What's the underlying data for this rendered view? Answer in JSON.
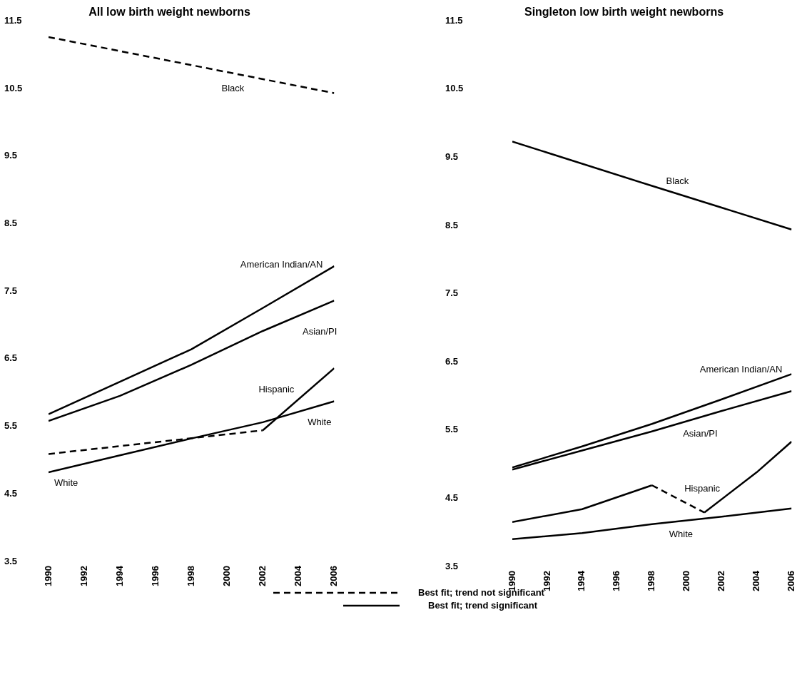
{
  "chart_data": [
    {
      "type": "line",
      "title": "All low birth weight newborns",
      "xlim": [
        1990,
        2006
      ],
      "xticks": [
        1990,
        1992,
        1994,
        1996,
        1998,
        2000,
        2002,
        2004,
        2006
      ],
      "ylim": [
        3.5,
        11.5
      ],
      "yticks": [
        3.5,
        4.5,
        5.5,
        6.5,
        7.5,
        8.5,
        9.5,
        10.5,
        11.5
      ],
      "marker": "none",
      "series": [
        {
          "name": "Black",
          "color": "#000000",
          "line_style": "dashed",
          "x": [
            1990,
            2006
          ],
          "values": [
            11.26,
            10.43
          ]
        },
        {
          "name": "American Indian/AN",
          "color": "#000000",
          "line_style": "solid",
          "x": [
            1990,
            1994,
            1998,
            2002,
            2006
          ],
          "values": [
            5.68,
            6.16,
            6.64,
            7.25,
            7.87
          ]
        },
        {
          "name": "Asian/PI",
          "color": "#000000",
          "line_style": "solid",
          "x": [
            1990,
            1994,
            1998,
            2002,
            2006
          ],
          "values": [
            5.58,
            5.95,
            6.41,
            6.91,
            7.36
          ]
        },
        {
          "name": "White",
          "color": "#000000",
          "line_style": "solid",
          "x": [
            1990,
            1994,
            1998,
            2002,
            2006
          ],
          "values": [
            4.82,
            5.07,
            5.32,
            5.56,
            5.87
          ]
        },
        {
          "color": "#000000",
          "line_style": "dashed",
          "x": [
            1990,
            2002
          ],
          "values": [
            5.09,
            5.44
          ]
        },
        {
          "name": "Hispanic",
          "color": "#000000",
          "line_style": "solid",
          "x": [
            2002,
            2006
          ],
          "values": [
            5.44,
            6.36
          ]
        }
      ]
    },
    {
      "type": "line",
      "title": "Singleton low birth weight newborns",
      "xlim": [
        1990,
        2006
      ],
      "xticks": [
        1990,
        1992,
        1994,
        1996,
        1998,
        2000,
        2002,
        2004,
        2006
      ],
      "ylim": [
        3.5,
        11.5
      ],
      "yticks": [
        3.5,
        4.5,
        5.5,
        6.5,
        7.5,
        8.5,
        9.5,
        10.5,
        11.5
      ],
      "marker": "none",
      "series": [
        {
          "name": "Black",
          "color": "#000000",
          "line_style": "solid",
          "x": [
            1990,
            1998,
            2006
          ],
          "values": [
            9.73,
            9.08,
            8.44
          ]
        },
        {
          "name": "American Indian/AN",
          "color": "#000000",
          "line_style": "solid",
          "x": [
            1990,
            1994,
            1998,
            2002,
            2006
          ],
          "values": [
            4.95,
            5.26,
            5.59,
            5.95,
            6.32
          ]
        },
        {
          "name": "Asian/PI",
          "color": "#000000",
          "line_style": "solid",
          "x": [
            1990,
            1994,
            1998,
            2002,
            2006
          ],
          "values": [
            4.92,
            5.2,
            5.48,
            5.78,
            6.07
          ]
        },
        {
          "color": "#000000",
          "line_style": "solid",
          "x": [
            1990,
            1994,
            1998
          ],
          "values": [
            4.15,
            4.34,
            4.69
          ]
        },
        {
          "name": "Hispanic",
          "color": "#000000",
          "line_style": "dashed",
          "x": [
            1998,
            2001
          ],
          "values": [
            4.69,
            4.29
          ]
        },
        {
          "color": "#000000",
          "line_style": "solid",
          "x": [
            2001,
            2004,
            2006
          ],
          "values": [
            4.29,
            4.88,
            5.33
          ]
        },
        {
          "name": "White",
          "color": "#000000",
          "line_style": "solid",
          "x": [
            1990,
            1994,
            1998,
            2002,
            2006
          ],
          "values": [
            3.9,
            3.99,
            4.12,
            4.23,
            4.35
          ]
        }
      ]
    },
    {
      "type": "other",
      "series": [
        {
          "name": "Best fit; trend not significant",
          "color": "#000000",
          "line_style": "dashed"
        },
        {
          "name": "Best fit; trend significant",
          "color": "#000000",
          "line_style": "solid"
        }
      ]
    }
  ]
}
